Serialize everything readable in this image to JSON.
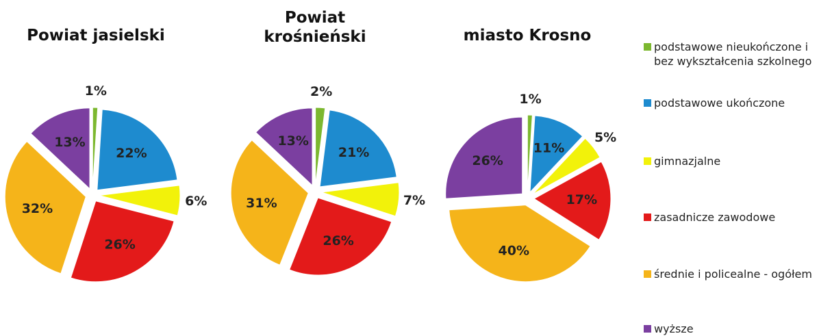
{
  "chart_data": {
    "type": "pie",
    "categories": [
      "podstawowe nieukończone i bez wykształcenia szkolnego",
      "podstawowe ukończone",
      "gimnazjalne",
      "zasadnicze zawodowe",
      "średnie i policealne - ogółem",
      "wyższe"
    ],
    "colors": [
      "#7cb82f",
      "#1e8bcf",
      "#f2f20a",
      "#e31a1a",
      "#f5b41a",
      "#7b3fa0"
    ],
    "series": [
      {
        "name": "Powiat jasielski",
        "values": [
          1,
          22,
          6,
          26,
          32,
          13
        ],
        "value_labels": [
          "1%",
          "22%",
          "6%",
          "26%",
          "32%",
          "13%"
        ]
      },
      {
        "name": "Powiat krośnieński",
        "values": [
          2,
          21,
          7,
          26,
          31,
          13
        ],
        "value_labels": [
          "2%",
          "21%",
          "7%",
          "26%",
          "31%",
          "13%"
        ]
      },
      {
        "name": "miasto Krosno",
        "values": [
          1,
          11,
          5,
          17,
          40,
          26
        ],
        "value_labels": [
          "1%",
          "11%",
          "5%",
          "17%",
          "40%",
          "26%"
        ]
      }
    ]
  }
}
